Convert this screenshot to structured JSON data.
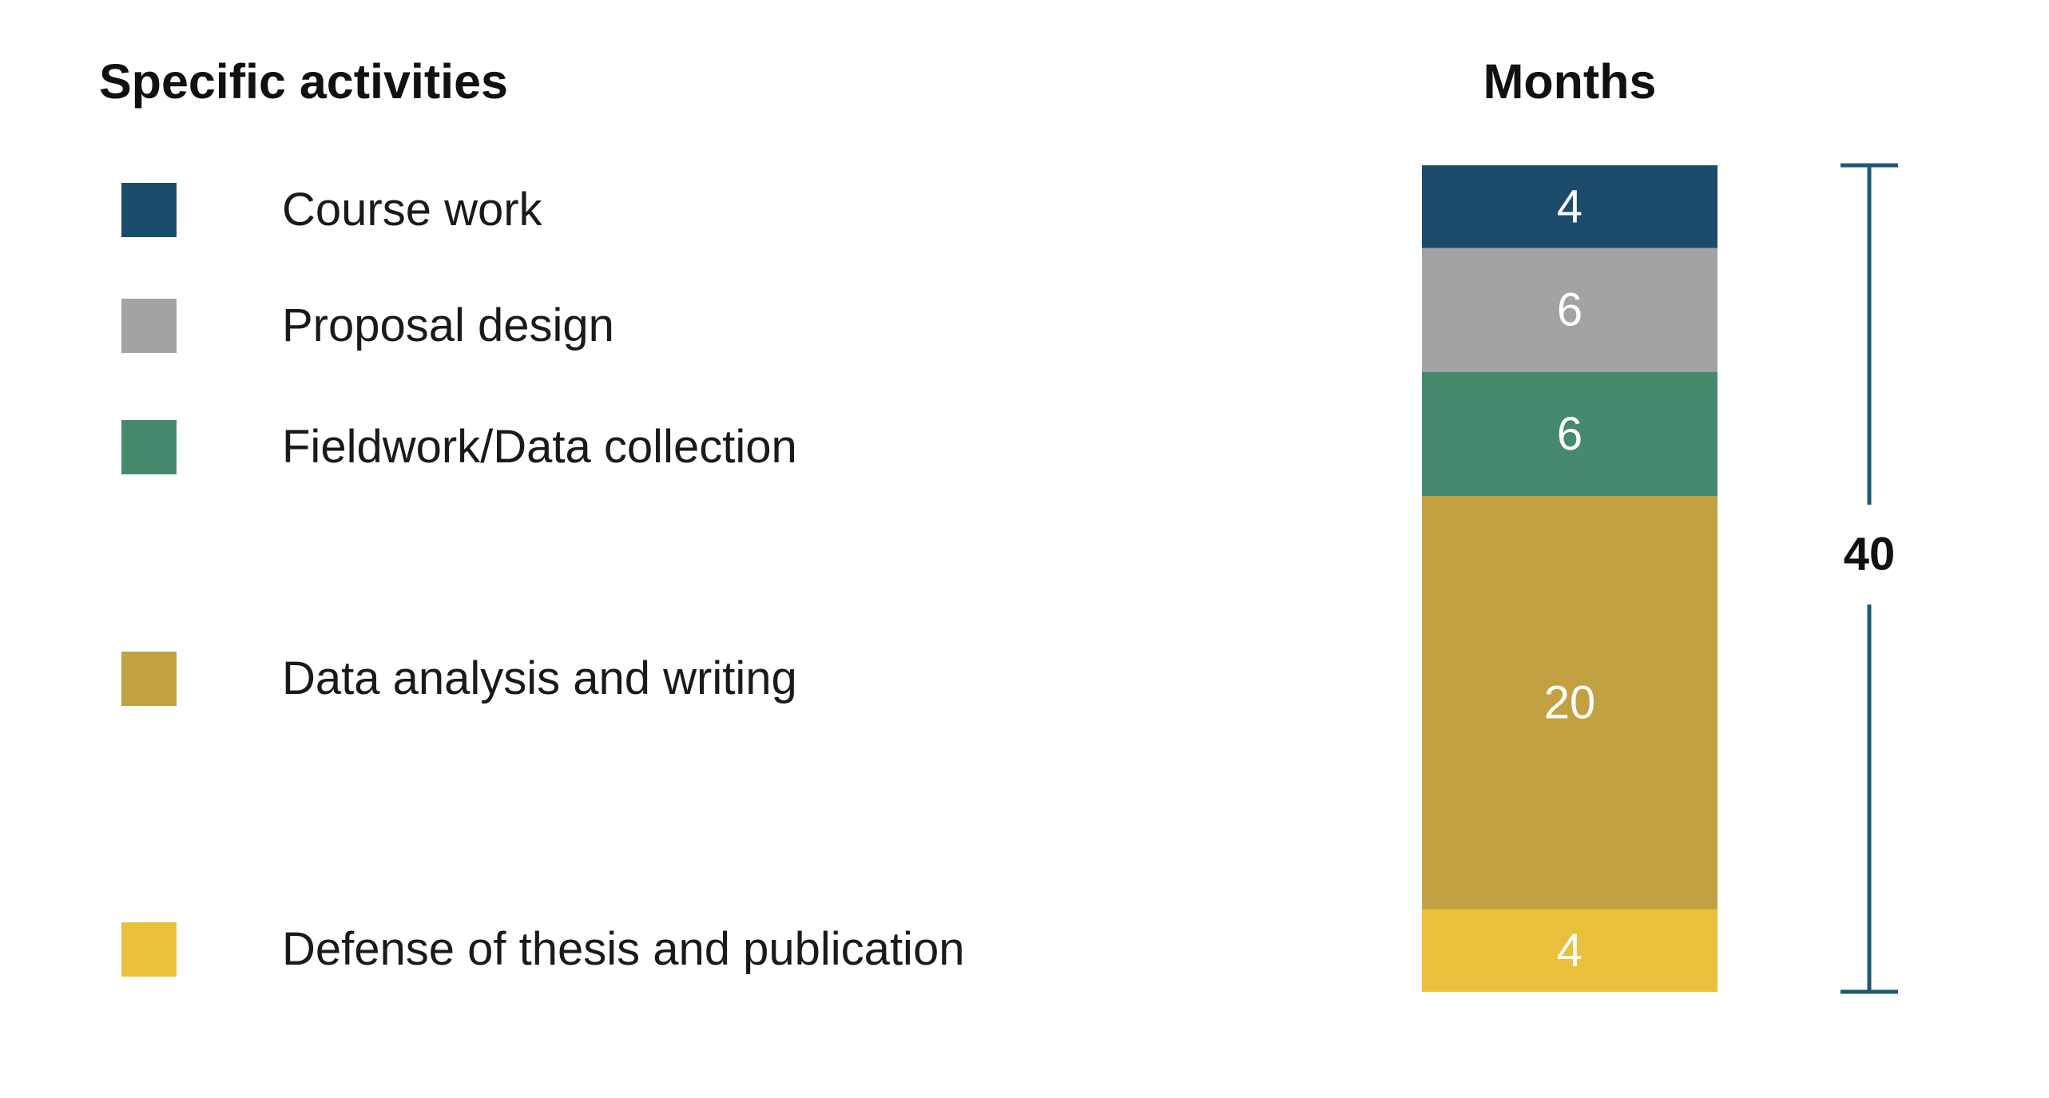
{
  "headings": {
    "activities": "Specific activities",
    "months": "Months"
  },
  "chart_data": {
    "type": "bar",
    "orientation": "stacked-vertical",
    "title": "",
    "xlabel": "",
    "ylabel": "Months",
    "categories": [
      "Course work",
      "Proposal design",
      "Fieldwork/Data collection",
      "Data analysis and writing",
      "Defense of thesis and publication"
    ],
    "values": [
      4,
      6,
      6,
      20,
      4
    ],
    "colors": [
      "#1d4b6b",
      "#a2a3a5",
      "#468a6e",
      "#c2a142",
      "#e9c03c"
    ],
    "total": "40",
    "total_color": "#1e5a73",
    "legend_position": "left"
  }
}
